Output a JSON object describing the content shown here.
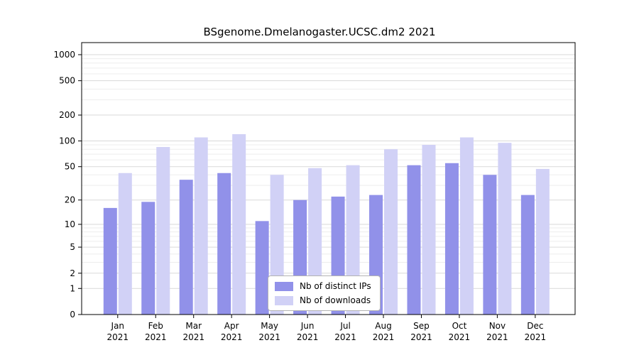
{
  "chart_data": {
    "type": "bar",
    "title": "BSgenome.Dmelanogaster.UCSC.dm2 2021",
    "year": "2021",
    "categories": [
      "Jan",
      "Feb",
      "Mar",
      "Apr",
      "May",
      "Jun",
      "Jul",
      "Aug",
      "Sep",
      "Oct",
      "Nov",
      "Dec"
    ],
    "series": [
      {
        "name": "Nb of distinct IPs",
        "color": "#9191e9",
        "values": [
          16,
          19,
          35,
          42,
          11,
          20,
          22,
          23,
          52,
          55,
          40,
          23
        ]
      },
      {
        "name": "Nb of downloads",
        "color": "#d1d1f6",
        "values": [
          42,
          85,
          110,
          120,
          40,
          48,
          52,
          80,
          90,
          110,
          95,
          47
        ]
      }
    ],
    "yscale": "log1p",
    "yticks": [
      0,
      1,
      2,
      5,
      10,
      20,
      50,
      100,
      200,
      500,
      1000
    ],
    "ylim": [
      0,
      1000
    ],
    "grid": true,
    "legend_position": "bottom-center",
    "colors": {
      "axis": "#000000",
      "grid_major": "#d9d9d9",
      "grid_minor": "#ededed",
      "background": "#ffffff"
    }
  }
}
